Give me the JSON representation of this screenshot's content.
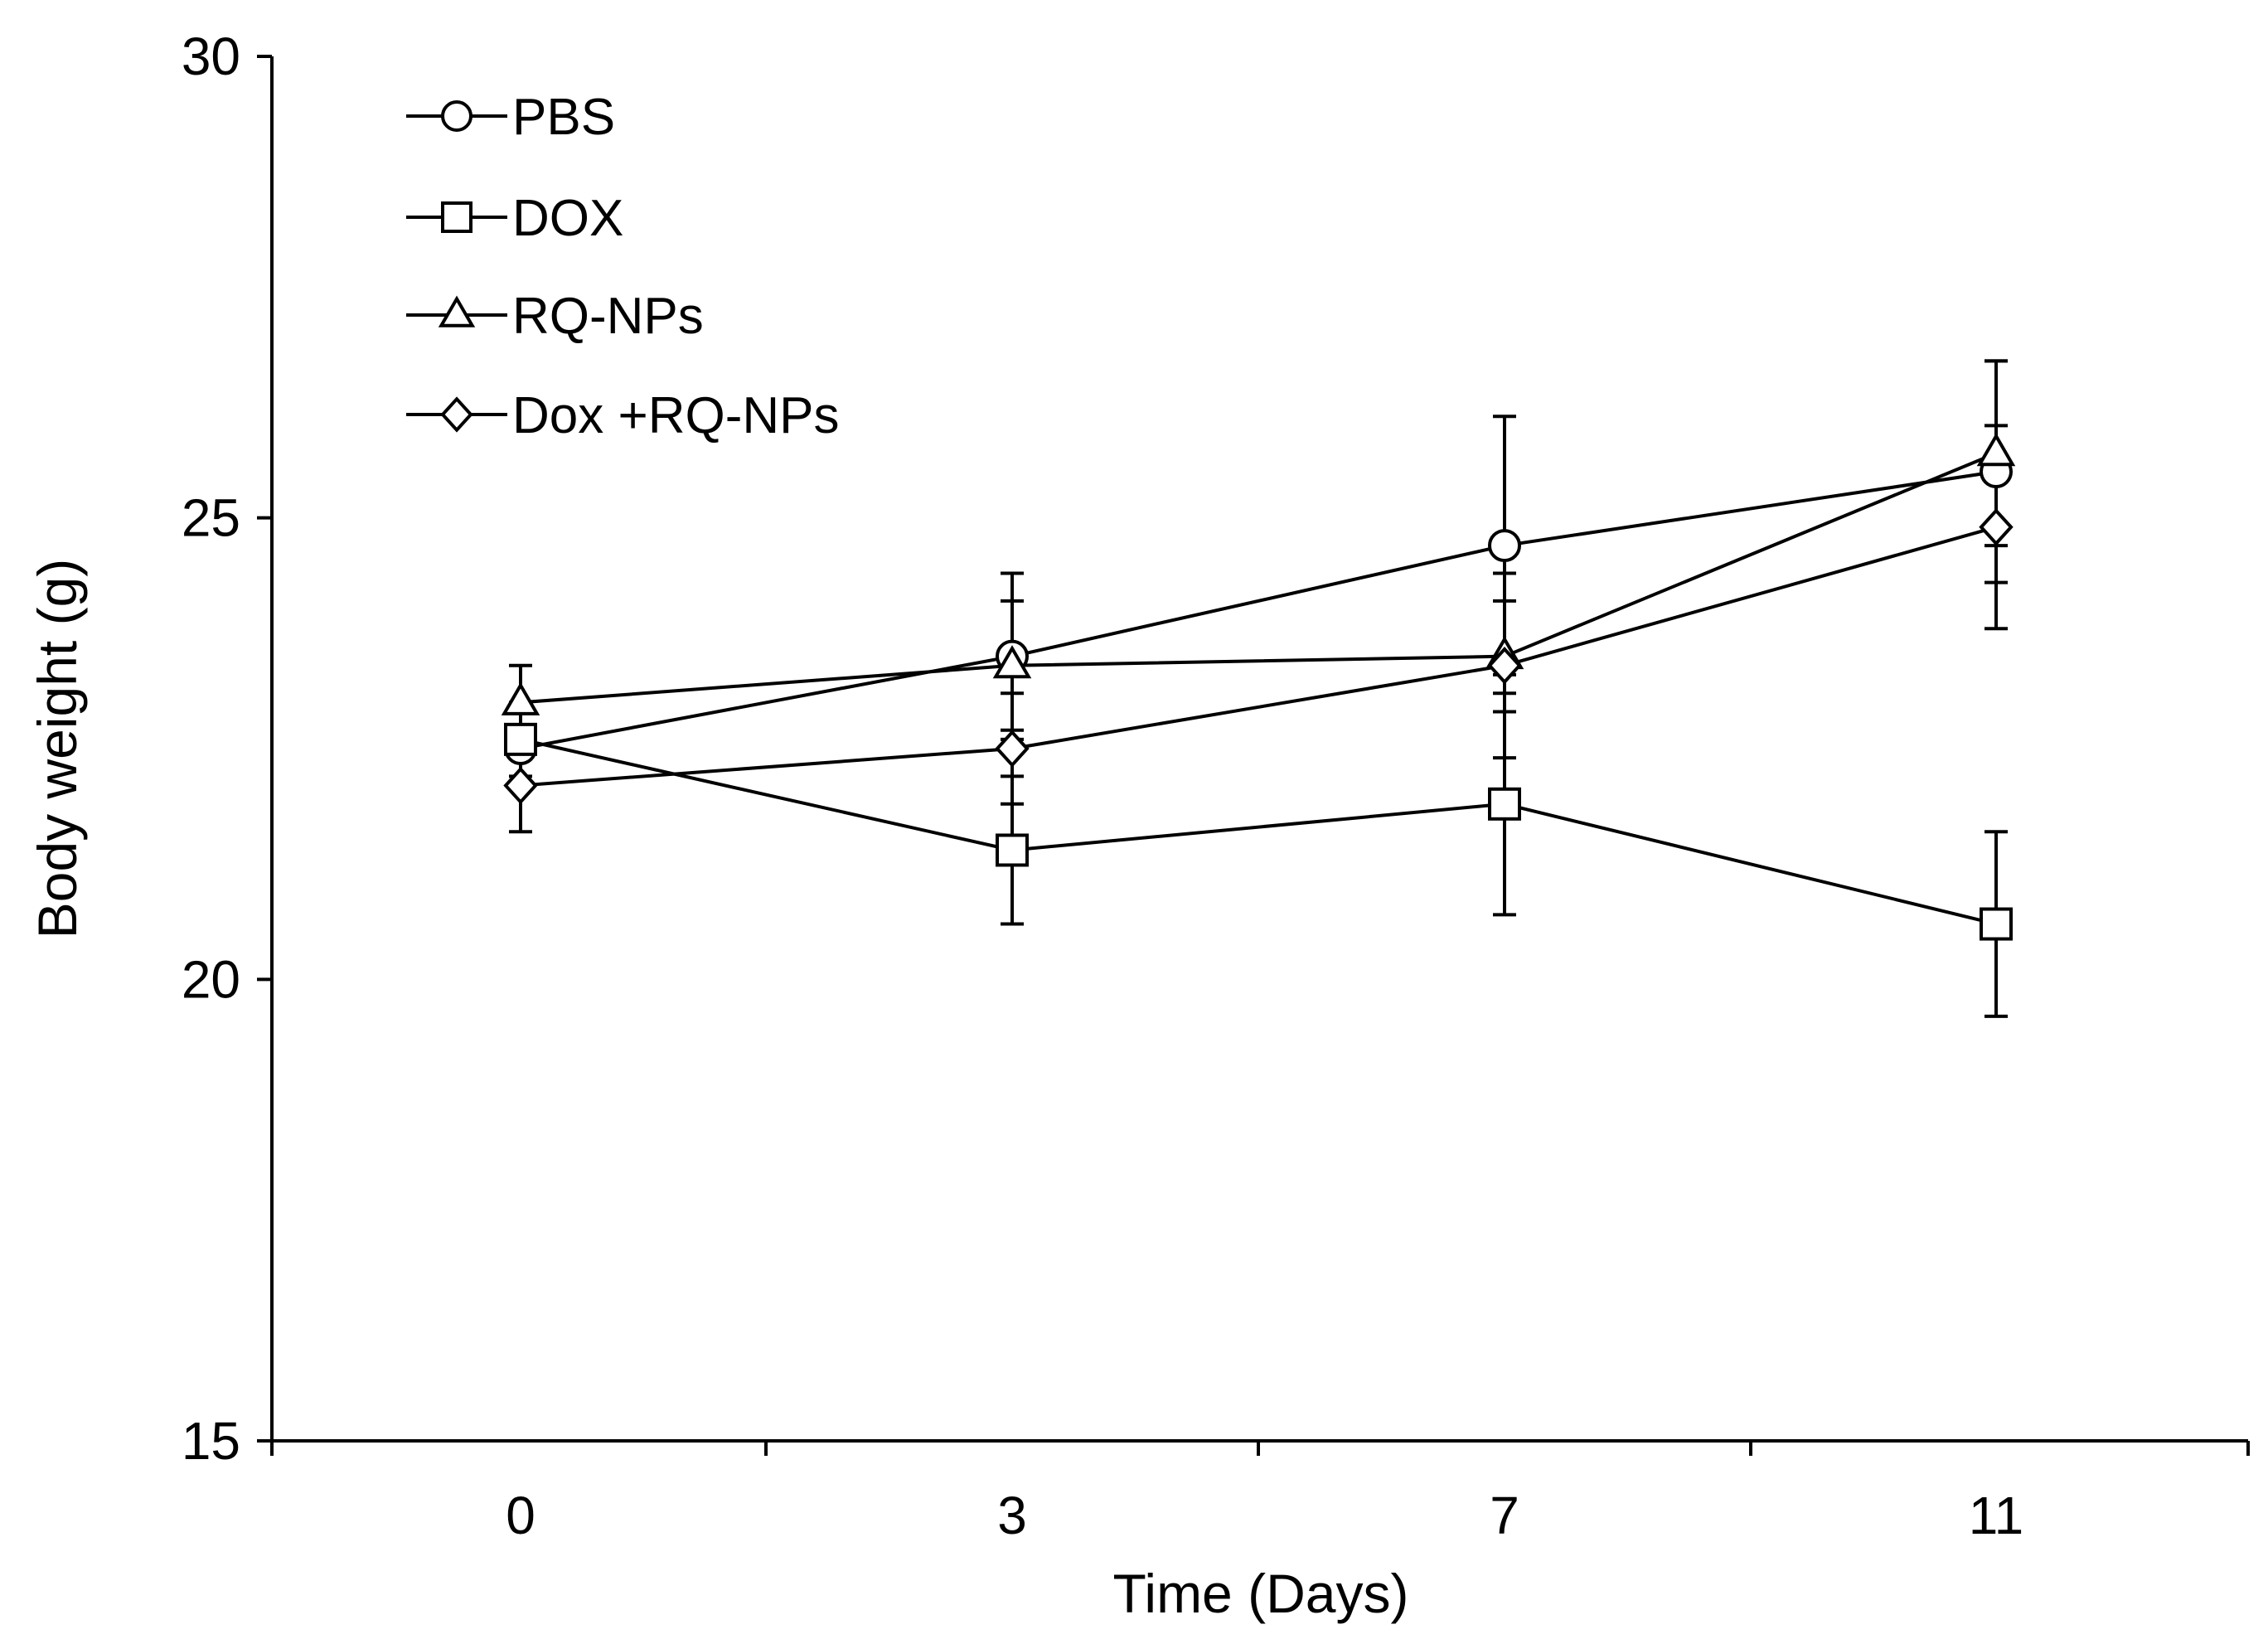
{
  "chart_data": {
    "type": "line",
    "title": "",
    "xlabel": "Time (Days)",
    "ylabel": "Body weight (g)",
    "categories": [
      "0",
      "3",
      "7",
      "11"
    ],
    "ylim": [
      15,
      30
    ],
    "yticks": [
      "15",
      "20",
      "25",
      "30"
    ],
    "grid": false,
    "legend_position": "top-left",
    "series": [
      {
        "name": "PBS",
        "marker": "circle",
        "values": [
          22.5,
          23.5,
          24.7,
          25.5
        ],
        "errors": [
          0.4,
          0.9,
          1.4,
          1.2
        ]
      },
      {
        "name": "DOX",
        "marker": "square",
        "values": [
          22.6,
          21.4,
          21.9,
          20.6
        ],
        "errors": [
          0.4,
          0.8,
          1.2,
          1.0
        ]
      },
      {
        "name": "RQ-NPs",
        "marker": "triangle",
        "values": [
          23.0,
          23.4,
          23.5,
          25.7
        ],
        "errors": [
          0.4,
          0.7,
          0.6,
          1.0
        ]
      },
      {
        "name": "Dox +RQ-NPs",
        "marker": "diamond",
        "values": [
          22.1,
          22.5,
          23.4,
          24.9
        ],
        "errors": [
          0.5,
          0.6,
          1.0,
          1.1
        ]
      }
    ],
    "colors": {
      "line": "#000000",
      "marker_fill": "#ffffff",
      "background": "#ffffff"
    }
  }
}
